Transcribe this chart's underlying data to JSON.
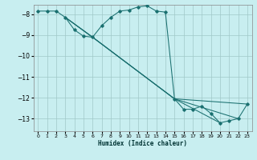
{
  "xlabel": "Humidex (Indice chaleur)",
  "background_color": "#c8eef0",
  "grid_color": "#a0c8c8",
  "line_color": "#1a7070",
  "xlim": [
    -0.5,
    23.5
  ],
  "ylim": [
    -13.6,
    -7.55
  ],
  "yticks": [
    -13,
    -12,
    -11,
    -10,
    -9,
    -8
  ],
  "xticks": [
    0,
    1,
    2,
    3,
    4,
    5,
    6,
    7,
    8,
    9,
    10,
    11,
    12,
    13,
    14,
    15,
    16,
    17,
    18,
    19,
    20,
    21,
    22,
    23
  ],
  "main_line": {
    "x": [
      0,
      1,
      2,
      3,
      4,
      5,
      6,
      7,
      8,
      9,
      10,
      11,
      12,
      13,
      14,
      15,
      16,
      17,
      18,
      19,
      20,
      21,
      22,
      23
    ],
    "y": [
      -7.85,
      -7.85,
      -7.85,
      -8.15,
      -8.75,
      -9.05,
      -9.1,
      -8.55,
      -8.15,
      -7.85,
      -7.8,
      -7.65,
      -7.6,
      -7.85,
      -7.9,
      -12.05,
      -12.55,
      -12.55,
      -12.4,
      -12.75,
      -13.2,
      -13.1,
      -13.0,
      -12.3
    ]
  },
  "extra_lines": [
    {
      "x": [
        3,
        6,
        15,
        23
      ],
      "y": [
        -8.15,
        -9.1,
        -12.05,
        -12.3
      ]
    },
    {
      "x": [
        3,
        6,
        15,
        22
      ],
      "y": [
        -8.15,
        -9.1,
        -12.05,
        -13.0
      ]
    },
    {
      "x": [
        3,
        6,
        15,
        20
      ],
      "y": [
        -8.15,
        -9.1,
        -12.05,
        -13.2
      ]
    }
  ]
}
